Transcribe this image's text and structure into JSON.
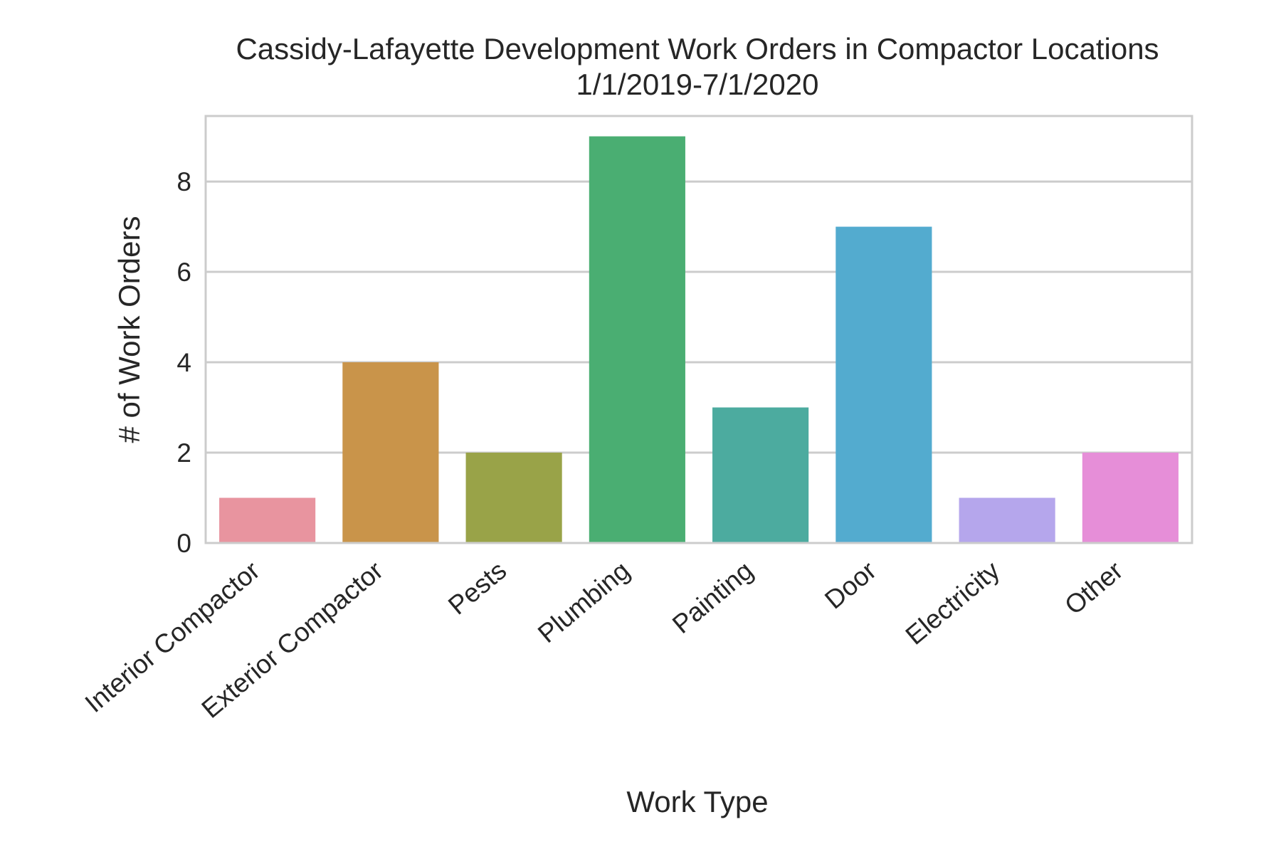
{
  "chart_data": {
    "type": "bar",
    "title": "Cassidy-Lafayette Development Work Orders in Compactor Locations",
    "subtitle": "1/1/2019-7/1/2020",
    "xlabel": "Work Type",
    "ylabel": "# of Work Orders",
    "categories": [
      "Interior Compactor",
      "Exterior Compactor",
      "Pests",
      "Plumbing",
      "Painting",
      "Door",
      "Electricity",
      "Other"
    ],
    "values": [
      1,
      4,
      2,
      9,
      3,
      7,
      1,
      2
    ],
    "colors": [
      "#e8949f",
      "#c9944a",
      "#99a348",
      "#4aae72",
      "#4cab9f",
      "#53abcf",
      "#b5a6ec",
      "#e68ed8"
    ],
    "yticks": [
      0,
      2,
      4,
      6,
      8
    ],
    "ylim": [
      0,
      9.45
    ],
    "grid": true,
    "grid_color": "#cccccc",
    "legend": "none"
  }
}
